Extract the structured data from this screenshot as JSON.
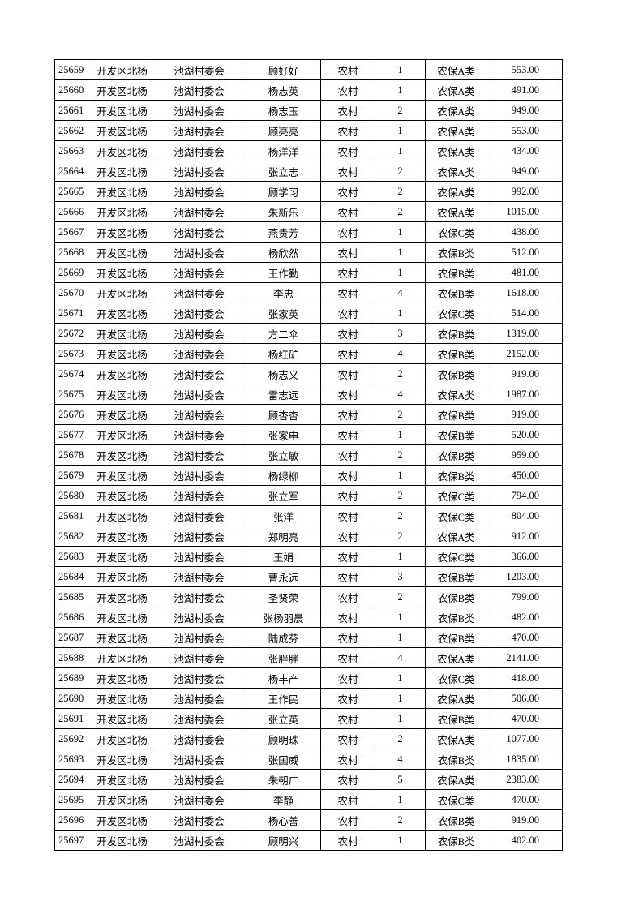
{
  "table": {
    "rows": [
      [
        "25659",
        "开发区北杨",
        "池湖村委会",
        "顾好好",
        "农村",
        "1",
        "农保A类",
        "553.00"
      ],
      [
        "25660",
        "开发区北杨",
        "池湖村委会",
        "杨志英",
        "农村",
        "1",
        "农保A类",
        "491.00"
      ],
      [
        "25661",
        "开发区北杨",
        "池湖村委会",
        "杨志玉",
        "农村",
        "2",
        "农保A类",
        "949.00"
      ],
      [
        "25662",
        "开发区北杨",
        "池湖村委会",
        "顾亮亮",
        "农村",
        "1",
        "农保A类",
        "553.00"
      ],
      [
        "25663",
        "开发区北杨",
        "池湖村委会",
        "杨洋洋",
        "农村",
        "1",
        "农保A类",
        "434.00"
      ],
      [
        "25664",
        "开发区北杨",
        "池湖村委会",
        "张立志",
        "农村",
        "2",
        "农保A类",
        "949.00"
      ],
      [
        "25665",
        "开发区北杨",
        "池湖村委会",
        "顾学习",
        "农村",
        "2",
        "农保A类",
        "992.00"
      ],
      [
        "25666",
        "开发区北杨",
        "池湖村委会",
        "朱新乐",
        "农村",
        "2",
        "农保A类",
        "1015.00"
      ],
      [
        "25667",
        "开发区北杨",
        "池湖村委会",
        "燕贵芳",
        "农村",
        "1",
        "农保C类",
        "438.00"
      ],
      [
        "25668",
        "开发区北杨",
        "池湖村委会",
        "杨欣然",
        "农村",
        "1",
        "农保B类",
        "512.00"
      ],
      [
        "25669",
        "开发区北杨",
        "池湖村委会",
        "王作勤",
        "农村",
        "1",
        "农保B类",
        "481.00"
      ],
      [
        "25670",
        "开发区北杨",
        "池湖村委会",
        "李忠",
        "农村",
        "4",
        "农保B类",
        "1618.00"
      ],
      [
        "25671",
        "开发区北杨",
        "池湖村委会",
        "张家英",
        "农村",
        "1",
        "农保C类",
        "514.00"
      ],
      [
        "25672",
        "开发区北杨",
        "池湖村委会",
        "方二伞",
        "农村",
        "3",
        "农保B类",
        "1319.00"
      ],
      [
        "25673",
        "开发区北杨",
        "池湖村委会",
        "杨红矿",
        "农村",
        "4",
        "农保B类",
        "2152.00"
      ],
      [
        "25674",
        "开发区北杨",
        "池湖村委会",
        "杨志义",
        "农村",
        "2",
        "农保B类",
        "919.00"
      ],
      [
        "25675",
        "开发区北杨",
        "池湖村委会",
        "雷志远",
        "农村",
        "4",
        "农保A类",
        "1987.00"
      ],
      [
        "25676",
        "开发区北杨",
        "池湖村委会",
        "顾杏杏",
        "农村",
        "2",
        "农保B类",
        "919.00"
      ],
      [
        "25677",
        "开发区北杨",
        "池湖村委会",
        "张家申",
        "农村",
        "1",
        "农保B类",
        "520.00"
      ],
      [
        "25678",
        "开发区北杨",
        "池湖村委会",
        "张立敏",
        "农村",
        "2",
        "农保B类",
        "959.00"
      ],
      [
        "25679",
        "开发区北杨",
        "池湖村委会",
        "杨绿柳",
        "农村",
        "1",
        "农保B类",
        "450.00"
      ],
      [
        "25680",
        "开发区北杨",
        "池湖村委会",
        "张立军",
        "农村",
        "2",
        "农保C类",
        "794.00"
      ],
      [
        "25681",
        "开发区北杨",
        "池湖村委会",
        "张洋",
        "农村",
        "2",
        "农保C类",
        "804.00"
      ],
      [
        "25682",
        "开发区北杨",
        "池湖村委会",
        "郑明亮",
        "农村",
        "2",
        "农保A类",
        "912.00"
      ],
      [
        "25683",
        "开发区北杨",
        "池湖村委会",
        "王娟",
        "农村",
        "1",
        "农保C类",
        "366.00"
      ],
      [
        "25684",
        "开发区北杨",
        "池湖村委会",
        "曹永远",
        "农村",
        "3",
        "农保B类",
        "1203.00"
      ],
      [
        "25685",
        "开发区北杨",
        "池湖村委会",
        "圣贤荣",
        "农村",
        "2",
        "农保B类",
        "799.00"
      ],
      [
        "25686",
        "开发区北杨",
        "池湖村委会",
        "张杨羽晨",
        "农村",
        "1",
        "农保B类",
        "482.00"
      ],
      [
        "25687",
        "开发区北杨",
        "池湖村委会",
        "陆成芬",
        "农村",
        "1",
        "农保B类",
        "470.00"
      ],
      [
        "25688",
        "开发区北杨",
        "池湖村委会",
        "张胖胖",
        "农村",
        "4",
        "农保A类",
        "2141.00"
      ],
      [
        "25689",
        "开发区北杨",
        "池湖村委会",
        "杨丰产",
        "农村",
        "1",
        "农保C类",
        "418.00"
      ],
      [
        "25690",
        "开发区北杨",
        "池湖村委会",
        "王作民",
        "农村",
        "1",
        "农保A类",
        "506.00"
      ],
      [
        "25691",
        "开发区北杨",
        "池湖村委会",
        "张立英",
        "农村",
        "1",
        "农保B类",
        "470.00"
      ],
      [
        "25692",
        "开发区北杨",
        "池湖村委会",
        "顾明珠",
        "农村",
        "2",
        "农保A类",
        "1077.00"
      ],
      [
        "25693",
        "开发区北杨",
        "池湖村委会",
        "张国威",
        "农村",
        "4",
        "农保B类",
        "1835.00"
      ],
      [
        "25694",
        "开发区北杨",
        "池湖村委会",
        "朱朝广",
        "农村",
        "5",
        "农保A类",
        "2383.00"
      ],
      [
        "25695",
        "开发区北杨",
        "池湖村委会",
        "李静",
        "农村",
        "1",
        "农保C类",
        "470.00"
      ],
      [
        "25696",
        "开发区北杨",
        "池湖村委会",
        "杨心善",
        "农村",
        "2",
        "农保B类",
        "919.00"
      ],
      [
        "25697",
        "开发区北杨",
        "池湖村委会",
        "顾明兴",
        "农村",
        "1",
        "农保B类",
        "402.00"
      ]
    ]
  }
}
